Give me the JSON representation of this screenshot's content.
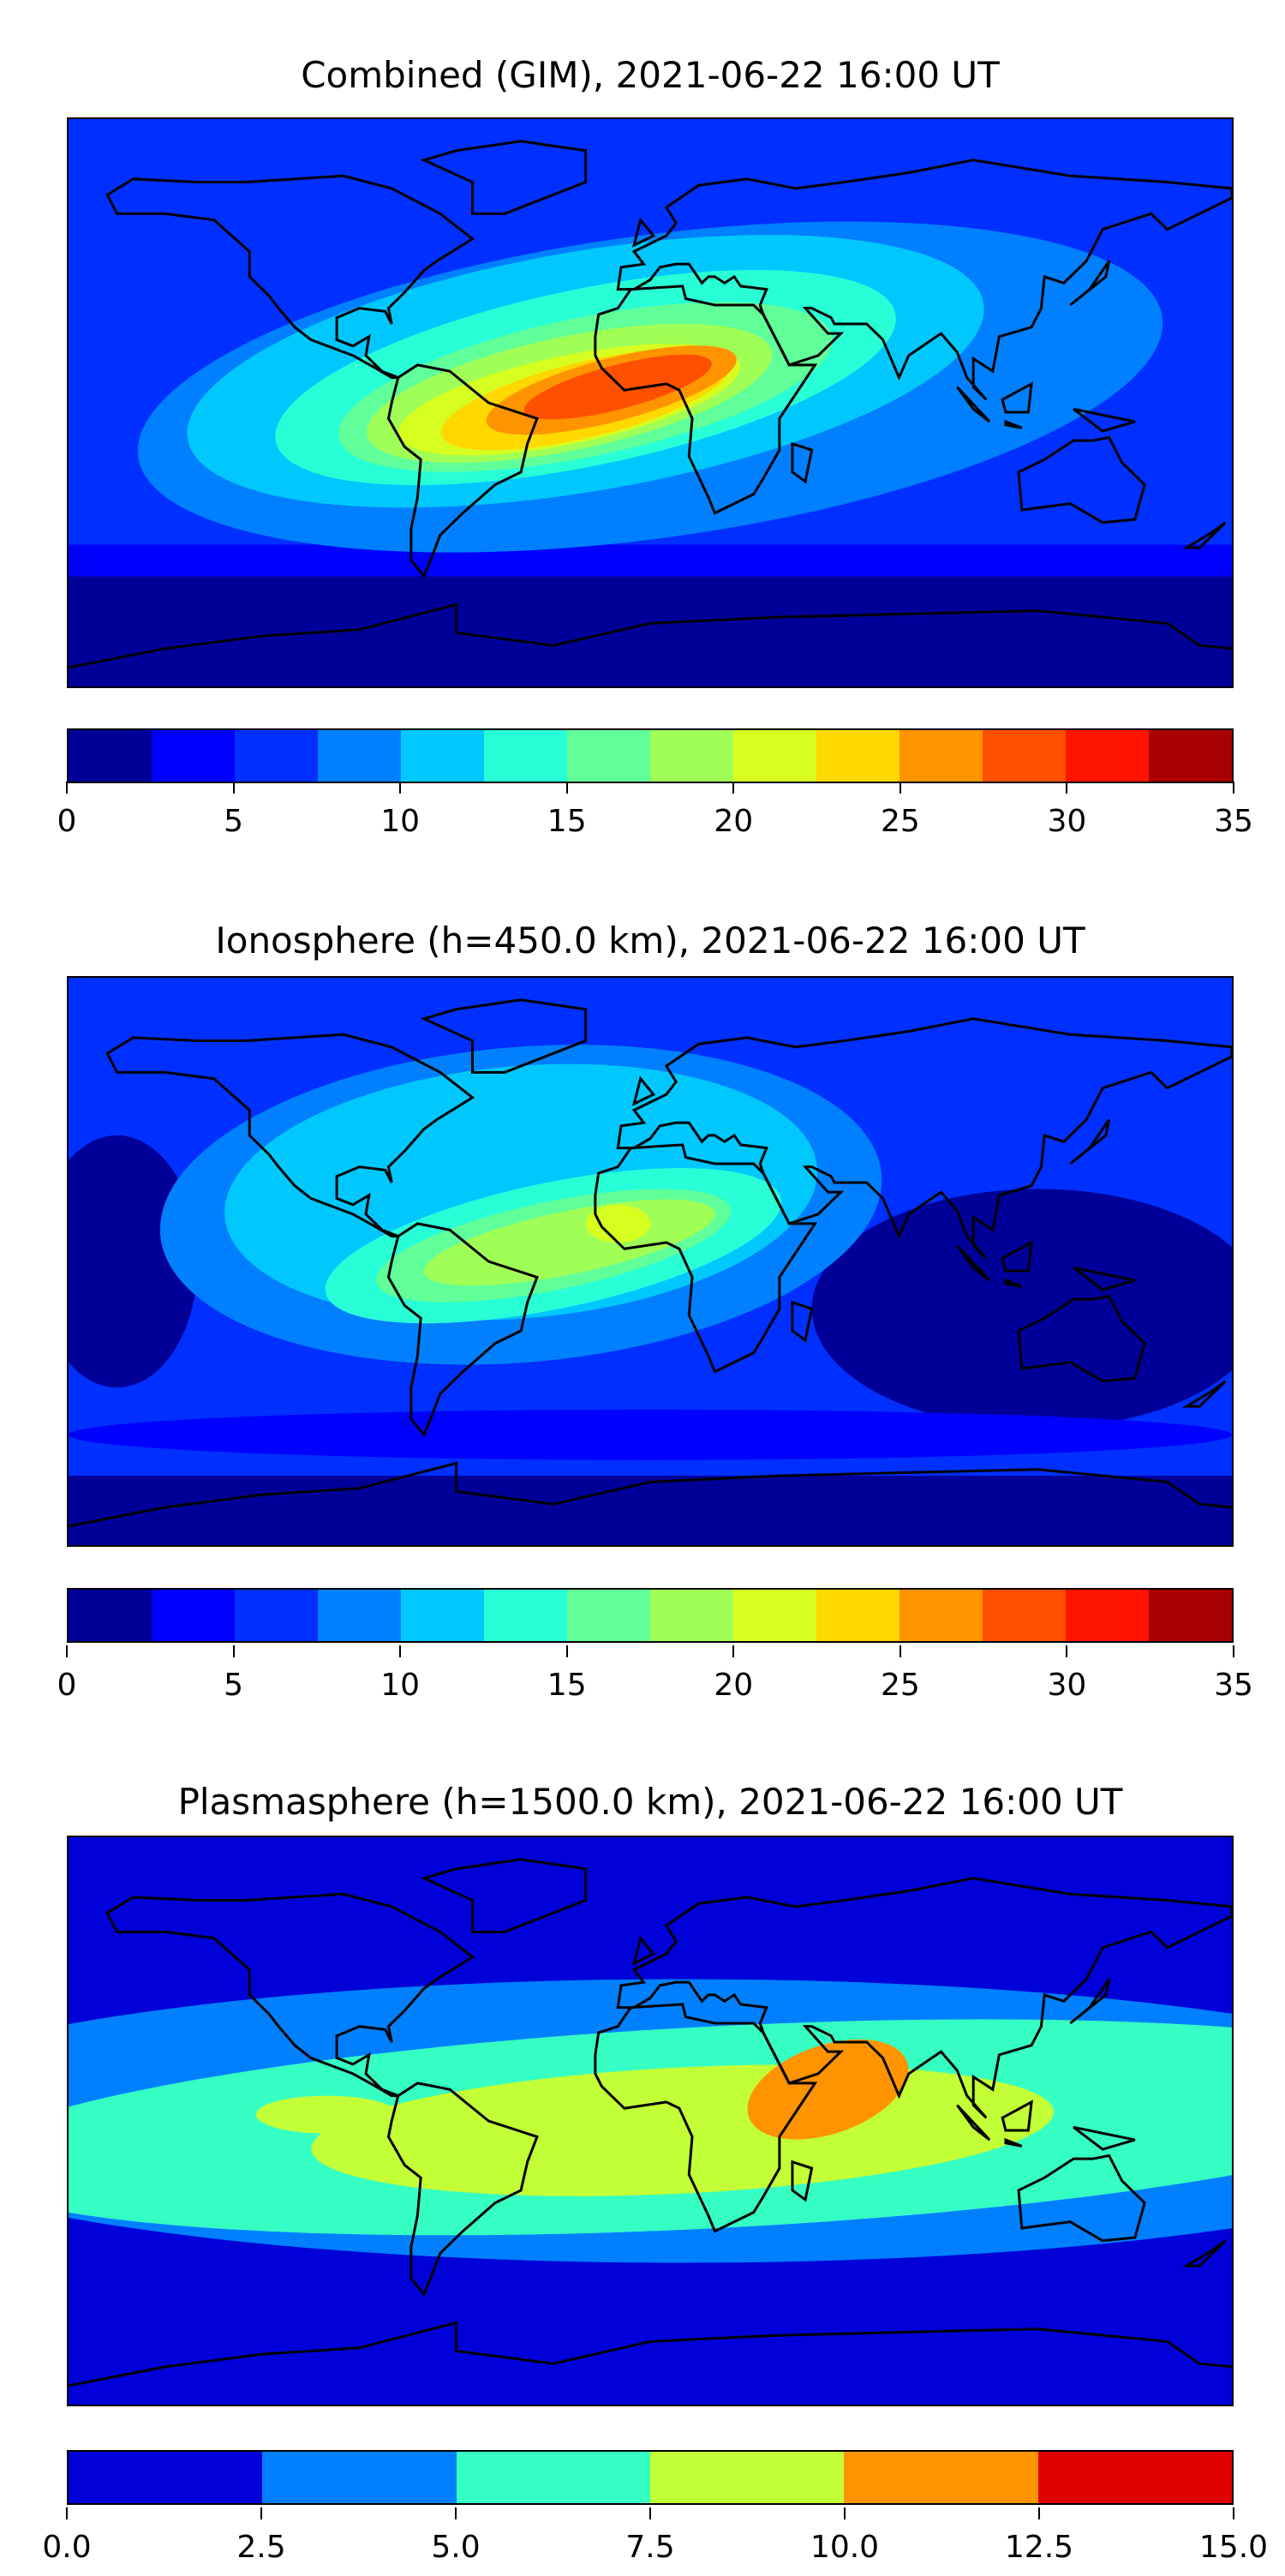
{
  "chart_data": [
    {
      "type": "heatmap",
      "title": "Combined (GIM), 2021-06-22 16:00 UT",
      "colorbar": {
        "ticks": [
          "0",
          "5",
          "10",
          "15",
          "20",
          "25",
          "30",
          "35"
        ],
        "range": [
          0,
          35
        ],
        "levels": [
          0,
          2.5,
          5,
          7.5,
          10,
          12.5,
          15,
          17.5,
          20,
          22.5,
          25,
          27.5,
          30,
          32.5,
          35
        ],
        "colors": [
          "#000099",
          "#0000ff",
          "#0030ff",
          "#0080ff",
          "#00c8ff",
          "#29ffd6",
          "#60ff99",
          "#a0ff56",
          "#d6ff20",
          "#ffd800",
          "#ff9400",
          "#ff5000",
          "#ff1400",
          "#a80000"
        ]
      },
      "peak": {
        "lon": -15,
        "lat": 3,
        "value_range": "27.5-30"
      }
    },
    {
      "type": "heatmap",
      "title": "Ionosphere  (h=450.0 km), 2021-06-22 16:00 UT",
      "colorbar": {
        "ticks": [
          "0",
          "5",
          "10",
          "15",
          "20",
          "25",
          "30",
          "35"
        ],
        "range": [
          0,
          35
        ],
        "levels": [
          0,
          2.5,
          5,
          7.5,
          10,
          12.5,
          15,
          17.5,
          20,
          22.5,
          25,
          27.5,
          30,
          32.5,
          35
        ],
        "colors": [
          "#000099",
          "#0000ff",
          "#0030ff",
          "#0080ff",
          "#00c8ff",
          "#29ffd6",
          "#60ff99",
          "#a0ff56",
          "#d6ff20",
          "#ffd800",
          "#ff9400",
          "#ff5000",
          "#ff1400",
          "#a80000"
        ]
      },
      "peak": {
        "lon": -10,
        "lat": 12,
        "value_range": "20-22.5"
      }
    },
    {
      "type": "heatmap",
      "title": "Plasmasphere (h=1500.0 km), 2021-06-22 16:00 UT",
      "colorbar": {
        "ticks": [
          "0.0",
          "2.5",
          "5.0",
          "7.5",
          "10.0",
          "12.5",
          "15.0"
        ],
        "range": [
          0,
          15
        ],
        "levels": [
          0,
          2.5,
          5,
          7.5,
          10,
          12.5,
          15
        ],
        "colors": [
          "#0000d9",
          "#0080ff",
          "#36ffc3",
          "#c3ff36",
          "#ff9400",
          "#e00000"
        ]
      },
      "peak": {
        "lon": 55,
        "lat": 10,
        "value_range": "10-12.5"
      }
    }
  ]
}
